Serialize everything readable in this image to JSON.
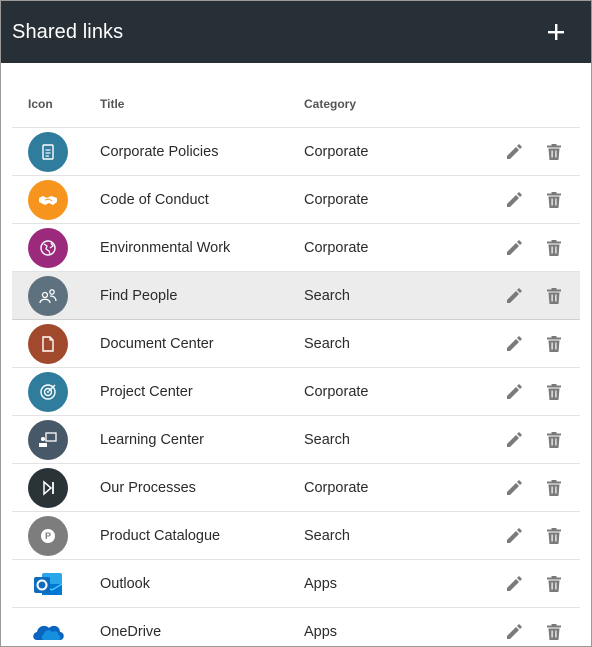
{
  "header": {
    "title": "Shared links",
    "add_symbol": "+"
  },
  "columns": {
    "icon": "Icon",
    "title": "Title",
    "category": "Category"
  },
  "rows": [
    {
      "title": "Corporate Policies",
      "category": "Corporate",
      "icon": "document-icon",
      "color": "#2f7c9c"
    },
    {
      "title": "Code of Conduct",
      "category": "Corporate",
      "icon": "handshake-icon",
      "color": "#f7941d"
    },
    {
      "title": "Environmental Work",
      "category": "Corporate",
      "icon": "globe-icon",
      "color": "#9b2a7c"
    },
    {
      "title": "Find People",
      "category": "Search",
      "icon": "people-icon",
      "color": "#5d717e"
    },
    {
      "title": "Document Center",
      "category": "Search",
      "icon": "page-icon",
      "color": "#a0492d"
    },
    {
      "title": "Project Center",
      "category": "Corporate",
      "icon": "target-icon",
      "color": "#2f7c9c"
    },
    {
      "title": "Learning Center",
      "category": "Search",
      "icon": "presentation-icon",
      "color": "#475868"
    },
    {
      "title": "Our Processes",
      "category": "Corporate",
      "icon": "skip-forward-icon",
      "color": "#2a3338"
    },
    {
      "title": "Product Catalogue",
      "category": "Search",
      "icon": "product-icon",
      "color": "#7d7d7d"
    },
    {
      "title": "Outlook",
      "category": "Apps",
      "icon": "outlook-icon",
      "color": "#0f6cbd"
    },
    {
      "title": "OneDrive",
      "category": "Apps",
      "icon": "onedrive-icon",
      "color": "#0b64c0"
    }
  ],
  "selected_row": 3
}
